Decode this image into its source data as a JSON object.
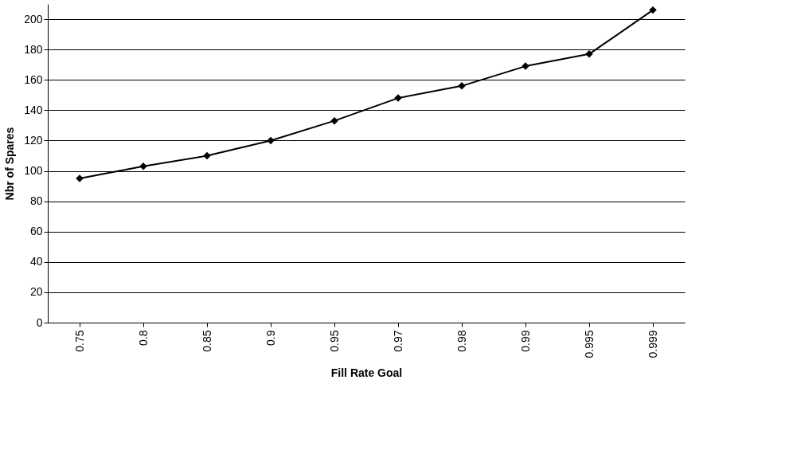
{
  "chart_data": {
    "type": "line",
    "xlabel": "Fill Rate Goal",
    "ylabel": "Nbr of Spares",
    "categories": [
      "0.75",
      "0.8",
      "0.85",
      "0.9",
      "0.95",
      "0.97",
      "0.98",
      "0.99",
      "0.995",
      "0.999"
    ],
    "series": [
      {
        "color": "#000000",
        "values": [
          95,
          103,
          110,
          120,
          133,
          148,
          156,
          169,
          177,
          206
        ]
      }
    ],
    "ylim": [
      0,
      210
    ],
    "yticks": [
      0,
      20,
      40,
      60,
      80,
      100,
      120,
      140,
      160,
      180,
      200
    ],
    "grid": "y",
    "marker": "diamond",
    "line_style": "solid"
  }
}
